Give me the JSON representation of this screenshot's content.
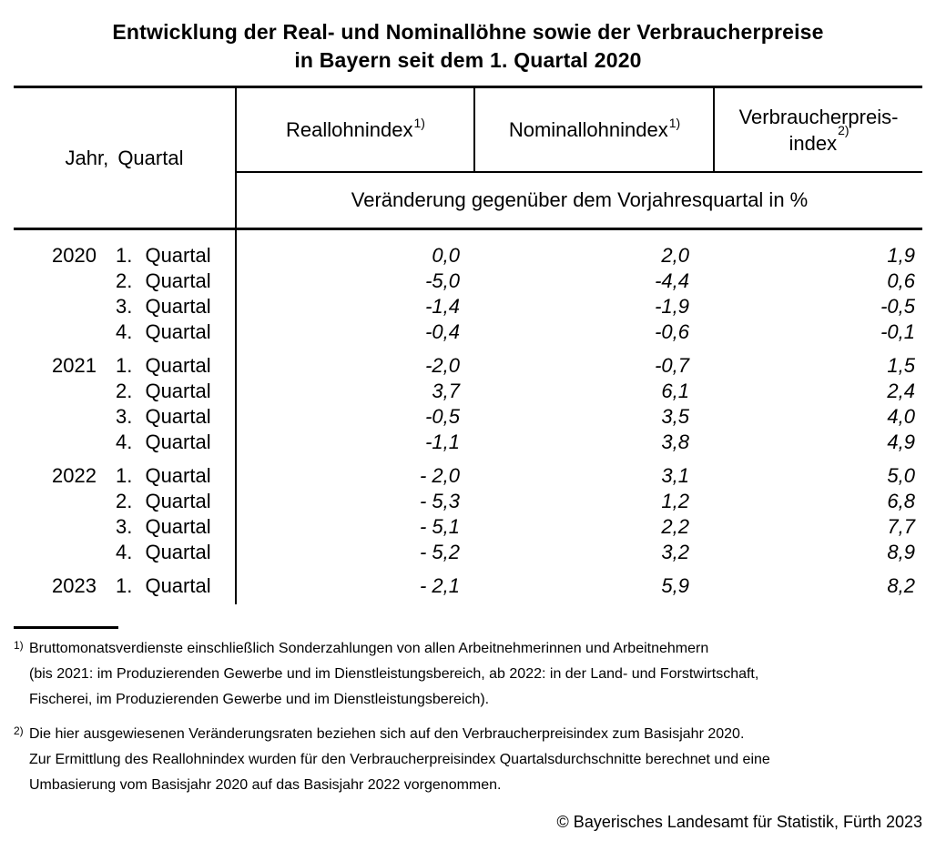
{
  "page": {
    "title": {
      "line1": "Entwicklung der Real- und Nominallöhne sowie der Verbraucherpreise",
      "line2": "in Bayern seit dem 1. Quartal 2020"
    },
    "table": {
      "header": {
        "col_jahr": "Jahr, Quartal",
        "col_real": "Reallohnindex",
        "col_real_sup": "1)",
        "col_nominal": "Nominallohnindex",
        "col_nominal_sup": "1)",
        "col_vpi_line1": "Verbraucherpreis-",
        "col_vpi_line2": "index",
        "col_vpi_sup": "2)",
        "subheader": "Veränderung gegenüber dem Vorjahresquartal in %"
      },
      "groups": [
        {
          "year": "2020",
          "rows": [
            {
              "quarter": "1. Quartal",
              "real": "0,0",
              "nominal": "2,0",
              "vpi": "1,9"
            },
            {
              "quarter": "2. Quartal",
              "real": "-5,0",
              "nominal": "-4,4",
              "vpi": "0,6"
            },
            {
              "quarter": "3. Quartal",
              "real": "-1,4",
              "nominal": "-1,9",
              "vpi": "-0,5"
            },
            {
              "quarter": "4. Quartal",
              "real": "-0,4",
              "nominal": "-0,6",
              "vpi": "-0,1"
            }
          ]
        },
        {
          "year": "2021",
          "rows": [
            {
              "quarter": "1. Quartal",
              "real": "-2,0",
              "nominal": "-0,7",
              "vpi": "1,5"
            },
            {
              "quarter": "2. Quartal",
              "real": "3,7",
              "nominal": "6,1",
              "vpi": "2,4"
            },
            {
              "quarter": "3. Quartal",
              "real": "-0,5",
              "nominal": "3,5",
              "vpi": "4,0"
            },
            {
              "quarter": "4. Quartal",
              "real": "-1,1",
              "nominal": "3,8",
              "vpi": "4,9"
            }
          ]
        },
        {
          "year": "2022",
          "rows": [
            {
              "quarter": "1. Quartal",
              "real": "- 2,0",
              "nominal": "3,1",
              "vpi": "5,0"
            },
            {
              "quarter": "2. Quartal",
              "real": "- 5,3",
              "nominal": "1,2",
              "vpi": "6,8"
            },
            {
              "quarter": "3. Quartal",
              "real": "- 5,1",
              "nominal": "2,2",
              "vpi": "7,7"
            },
            {
              "quarter": "4. Quartal",
              "real": "- 5,2",
              "nominal": "3,2",
              "vpi": "8,9"
            }
          ]
        },
        {
          "year": "2023",
          "rows": [
            {
              "quarter": "1. Quartal",
              "real": "- 2,1",
              "nominal": "5,9",
              "vpi": "8,2"
            }
          ]
        }
      ]
    },
    "footnotes": [
      {
        "marker": "1)",
        "lines": [
          "Bruttomonatsverdienste einschließlich Sonderzahlungen von allen Arbeitnehmerinnen und Arbeitnehmern",
          "(bis 2021: im Produzierenden Gewerbe und im Dienstleistungsbereich, ab 2022: in der Land- und Forstwirtschaft,",
          "Fischerei, im Produzierenden Gewerbe und im Dienstleistungsbereich)."
        ]
      },
      {
        "marker": "2)",
        "lines": [
          "Die hier ausgewiesenen Veränderungsraten beziehen sich auf den Verbraucherpreisindex zum Basisjahr 2020.",
          "Zur Ermittlung des Reallohnindex wurden für den Verbraucherpreisindex Quartalsdurchschnitte berechnet und eine",
          "Umbasierung vom Basisjahr 2020 auf das Basisjahr 2022 vorgenommen."
        ]
      }
    ],
    "copyright": "© Bayerisches Landesamt für Statistik, Fürth 2023"
  }
}
